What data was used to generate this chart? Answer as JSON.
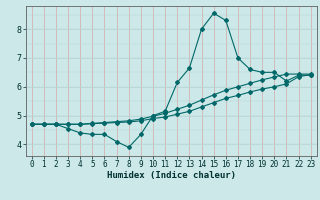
{
  "xlabel": "Humidex (Indice chaleur)",
  "ylabel": "",
  "bg_color": "#cce8e8",
  "line_color": "#006868",
  "xlim": [
    -0.5,
    23.5
  ],
  "ylim": [
    3.6,
    8.8
  ],
  "xticks": [
    0,
    1,
    2,
    3,
    4,
    5,
    6,
    7,
    8,
    9,
    10,
    11,
    12,
    13,
    14,
    15,
    16,
    17,
    18,
    19,
    20,
    21,
    22,
    23
  ],
  "yticks": [
    4,
    5,
    6,
    7,
    8
  ],
  "line1_x": [
    0,
    1,
    2,
    3,
    4,
    5,
    6,
    7,
    8,
    9,
    10,
    11,
    12,
    13,
    14,
    15,
    16,
    17,
    18,
    19,
    20,
    21,
    22,
    23
  ],
  "line1_y": [
    4.7,
    4.7,
    4.7,
    4.55,
    4.4,
    4.35,
    4.35,
    4.1,
    3.9,
    4.35,
    5.0,
    5.15,
    6.15,
    6.65,
    8.0,
    8.55,
    8.3,
    7.0,
    6.6,
    6.5,
    6.5,
    6.2,
    6.4,
    6.4
  ],
  "line2_x": [
    0,
    1,
    2,
    3,
    4,
    5,
    6,
    7,
    8,
    9,
    10,
    11,
    12,
    13,
    14,
    15,
    16,
    17,
    18,
    19,
    20,
    21,
    22,
    23
  ],
  "line2_y": [
    4.7,
    4.7,
    4.7,
    4.7,
    4.7,
    4.72,
    4.74,
    4.76,
    4.78,
    4.82,
    4.9,
    4.95,
    5.05,
    5.15,
    5.3,
    5.45,
    5.6,
    5.7,
    5.82,
    5.92,
    6.0,
    6.1,
    6.35,
    6.42
  ],
  "line3_x": [
    0,
    1,
    2,
    3,
    4,
    5,
    6,
    7,
    8,
    9,
    10,
    11,
    12,
    13,
    14,
    15,
    16,
    17,
    18,
    19,
    20,
    21,
    22,
    23
  ],
  "line3_y": [
    4.7,
    4.7,
    4.7,
    4.7,
    4.7,
    4.73,
    4.76,
    4.79,
    4.82,
    4.88,
    4.98,
    5.08,
    5.22,
    5.36,
    5.54,
    5.72,
    5.88,
    6.0,
    6.12,
    6.24,
    6.34,
    6.44,
    6.44,
    6.44
  ],
  "vgrid_color": "#d8a8a8",
  "hgrid_color": "#b8d4d4",
  "xlabel_fontsize": 6.5,
  "tick_fontsize": 5.5
}
